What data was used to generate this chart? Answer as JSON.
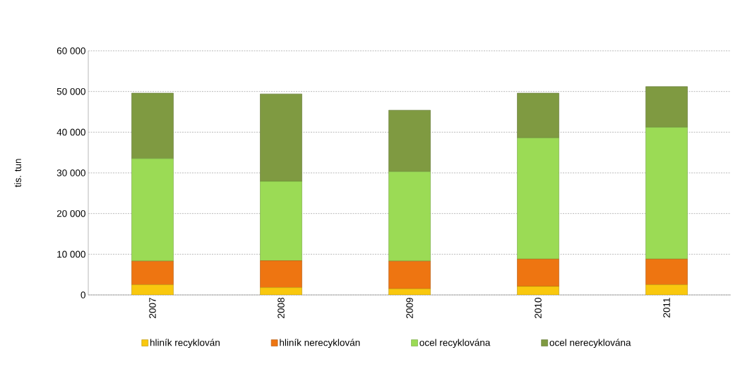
{
  "chart_data": {
    "type": "bar",
    "stacked": true,
    "ylabel": "tis. tun",
    "categories": [
      "2007",
      "2008",
      "2009",
      "2010",
      "2011"
    ],
    "series": [
      {
        "name": "hliník recyklován",
        "color": "#f9c80e",
        "values": [
          2500,
          1800,
          1500,
          2100,
          2500
        ]
      },
      {
        "name": "hliník nerecyklován",
        "color": "#ee7511",
        "values": [
          5800,
          6600,
          6800,
          6700,
          6300
        ]
      },
      {
        "name": "ocel recyklována",
        "color": "#9bdb55",
        "values": [
          25200,
          19500,
          22000,
          29800,
          32400
        ]
      },
      {
        "name": "ocel nerecyklována",
        "color": "#7f9a41",
        "values": [
          16100,
          21500,
          15100,
          11000,
          10000
        ]
      }
    ],
    "ylim": [
      0,
      60000
    ],
    "yticks": [
      0,
      {
        "value": 10000,
        "label": "10 000"
      },
      {
        "value": 20000,
        "label": "20 000"
      },
      {
        "value": 30000,
        "label": "30 000"
      },
      {
        "value": 40000,
        "label": "40 000"
      },
      {
        "value": 50000,
        "label": "50 000"
      },
      {
        "value": 60000,
        "label": "60 000"
      }
    ],
    "grid": "y",
    "legend": "bottom"
  }
}
